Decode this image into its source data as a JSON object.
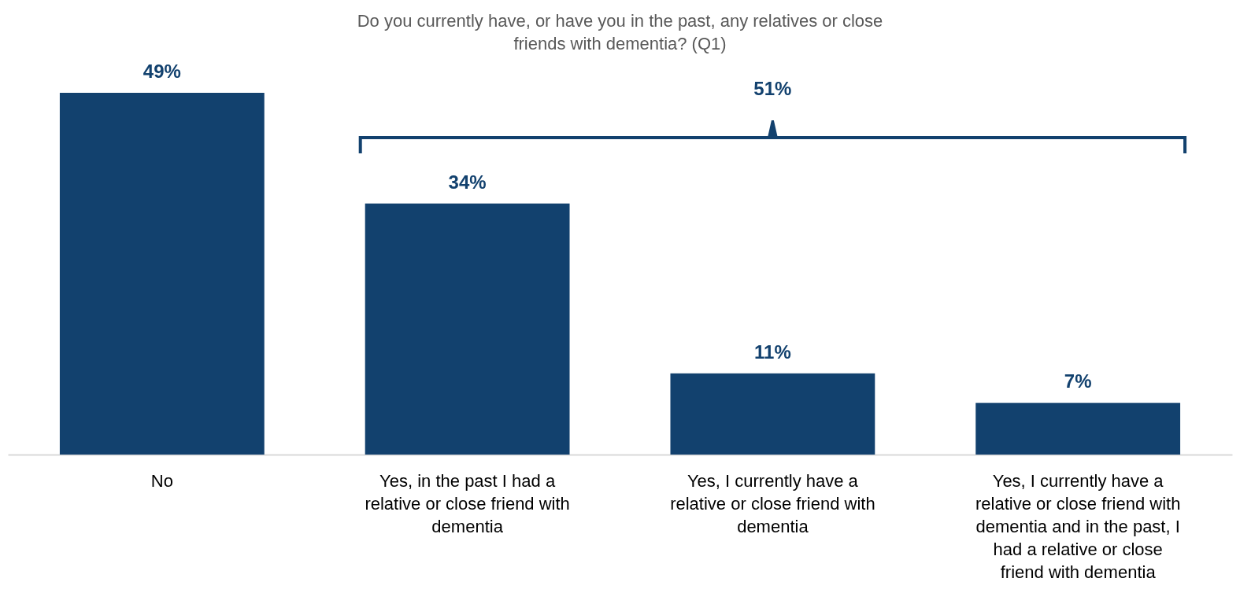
{
  "chart_data": {
    "type": "bar",
    "title": [
      "Do you currently have, or have you in the past, any relatives or close",
      "friends with dementia? (Q1)"
    ],
    "categories": [
      "No",
      "Yes, in the past I had a relative or close friend with dementia",
      "Yes, I currently have a relative or close friend with dementia",
      "Yes, I currently have a relative or close friend with dementia and in the past, I had a relative or close friend with dementia"
    ],
    "values": [
      49,
      34,
      11,
      7
    ],
    "value_labels": [
      "49%",
      "34%",
      "11%",
      "7%"
    ],
    "color": "#12416e",
    "annotations": [
      "51%"
    ]
  }
}
